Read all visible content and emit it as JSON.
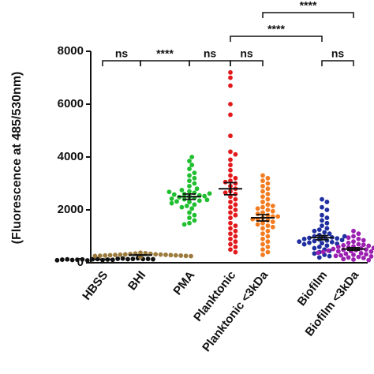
{
  "chart_data": {
    "type": "scatter",
    "y_label": "(Fluorescence at 485/530nm)",
    "ylim": [
      0,
      8000
    ],
    "yticks": [
      0,
      2000,
      4000,
      6000,
      8000
    ],
    "series": [
      {
        "name": "HBSS",
        "color": "#111111",
        "mean": 130,
        "sem": 6,
        "values": [
          100,
          120,
          140,
          110,
          130,
          150,
          90,
          160,
          125,
          135,
          115,
          145,
          105,
          170,
          128,
          138,
          118,
          148,
          95,
          132
        ]
      },
      {
        "name": "BHI",
        "color": "#9c7a3c",
        "mean": 290,
        "sem": 9,
        "values": [
          380,
          360,
          350,
          340,
          330,
          320,
          315,
          310,
          305,
          300,
          295,
          290,
          285,
          280,
          275,
          270,
          265,
          260,
          255,
          250,
          245,
          240,
          235,
          230,
          225,
          220
        ]
      },
      {
        "name": "PMA",
        "color": "#1fbf2f",
        "mean": 2500,
        "sem": 100,
        "values": [
          2500,
          2450,
          2600,
          2550,
          2400,
          2700,
          2300,
          2650,
          2350,
          2750,
          2200,
          2800,
          2150,
          2900,
          2100,
          3000,
          2050,
          3100,
          1900,
          3200,
          1800,
          3300,
          1700,
          3400,
          1600,
          3550,
          1500,
          3700,
          1450,
          3850,
          2480,
          2520,
          2580,
          2420,
          2620,
          2380,
          4000,
          2680,
          2320,
          2250
        ]
      },
      {
        "name": "Planktonic",
        "color": "#e31a1c",
        "mean": 2800,
        "sem": 230,
        "values": [
          7200,
          7000,
          6700,
          6000,
          5600,
          4800,
          4200,
          4100,
          3900,
          3700,
          3500,
          3300,
          3200,
          3100,
          3000,
          2900,
          2800,
          2700,
          2600,
          2500,
          2400,
          2300,
          2200,
          2100,
          2000,
          1900,
          1800,
          1700,
          1500,
          1400,
          1300,
          1200,
          1100,
          1000,
          900,
          800,
          700,
          600,
          500,
          400,
          2650,
          3050
        ]
      },
      {
        "name": "Planktonic <3kDa",
        "color": "#f47c20",
        "mean": 1700,
        "sem": 120,
        "values": [
          3300,
          3200,
          3100,
          3000,
          2900,
          2800,
          2700,
          2600,
          2500,
          2400,
          2300,
          2200,
          2100,
          2050,
          2000,
          1950,
          1900,
          1850,
          1800,
          1750,
          1700,
          1650,
          1600,
          1550,
          1500,
          1450,
          1400,
          1350,
          1300,
          1200,
          1100,
          1000,
          900,
          800,
          700,
          600,
          500,
          400,
          300,
          1650,
          1750,
          2150
        ]
      },
      {
        "name": "Biofilm",
        "color": "#1f2fa0",
        "mean": 950,
        "sem": 80,
        "values": [
          2400,
          2300,
          2100,
          2000,
          1800,
          1700,
          1600,
          1500,
          1400,
          1300,
          1250,
          1200,
          1150,
          1100,
          1050,
          1000,
          980,
          960,
          940,
          920,
          900,
          880,
          860,
          840,
          820,
          800,
          780,
          760,
          740,
          720,
          700,
          650,
          600,
          550,
          500,
          450,
          400,
          350,
          300,
          250,
          200,
          1000
        ]
      },
      {
        "name": "Biofilm <3kDa",
        "color": "#9b1fb0",
        "mean": 520,
        "sem": 50,
        "values": [
          1200,
          1100,
          1000,
          950,
          900,
          850,
          800,
          750,
          700,
          680,
          660,
          640,
          620,
          600,
          580,
          560,
          540,
          520,
          500,
          490,
          480,
          470,
          460,
          450,
          440,
          430,
          420,
          410,
          400,
          380,
          360,
          340,
          320,
          300,
          280,
          260,
          240,
          220,
          200,
          180,
          160,
          140,
          120,
          100
        ]
      }
    ],
    "brackets": [
      {
        "from": "HBSS",
        "to": "BHI",
        "label": "ns"
      },
      {
        "from": "BHI",
        "to": "PMA",
        "label": "****"
      },
      {
        "from": "PMA",
        "to": "Planktonic",
        "label": "ns"
      },
      {
        "from": "Planktonic",
        "to": "Planktonic <3kDa",
        "label": "ns"
      },
      {
        "from": "Biofilm",
        "to": "Biofilm <3kDa",
        "label": "ns"
      },
      {
        "from": "Planktonic",
        "to": "Biofilm",
        "label": "****"
      },
      {
        "from": "Planktonic <3kDa",
        "to": "Biofilm <3kDa",
        "label": "****"
      }
    ]
  }
}
